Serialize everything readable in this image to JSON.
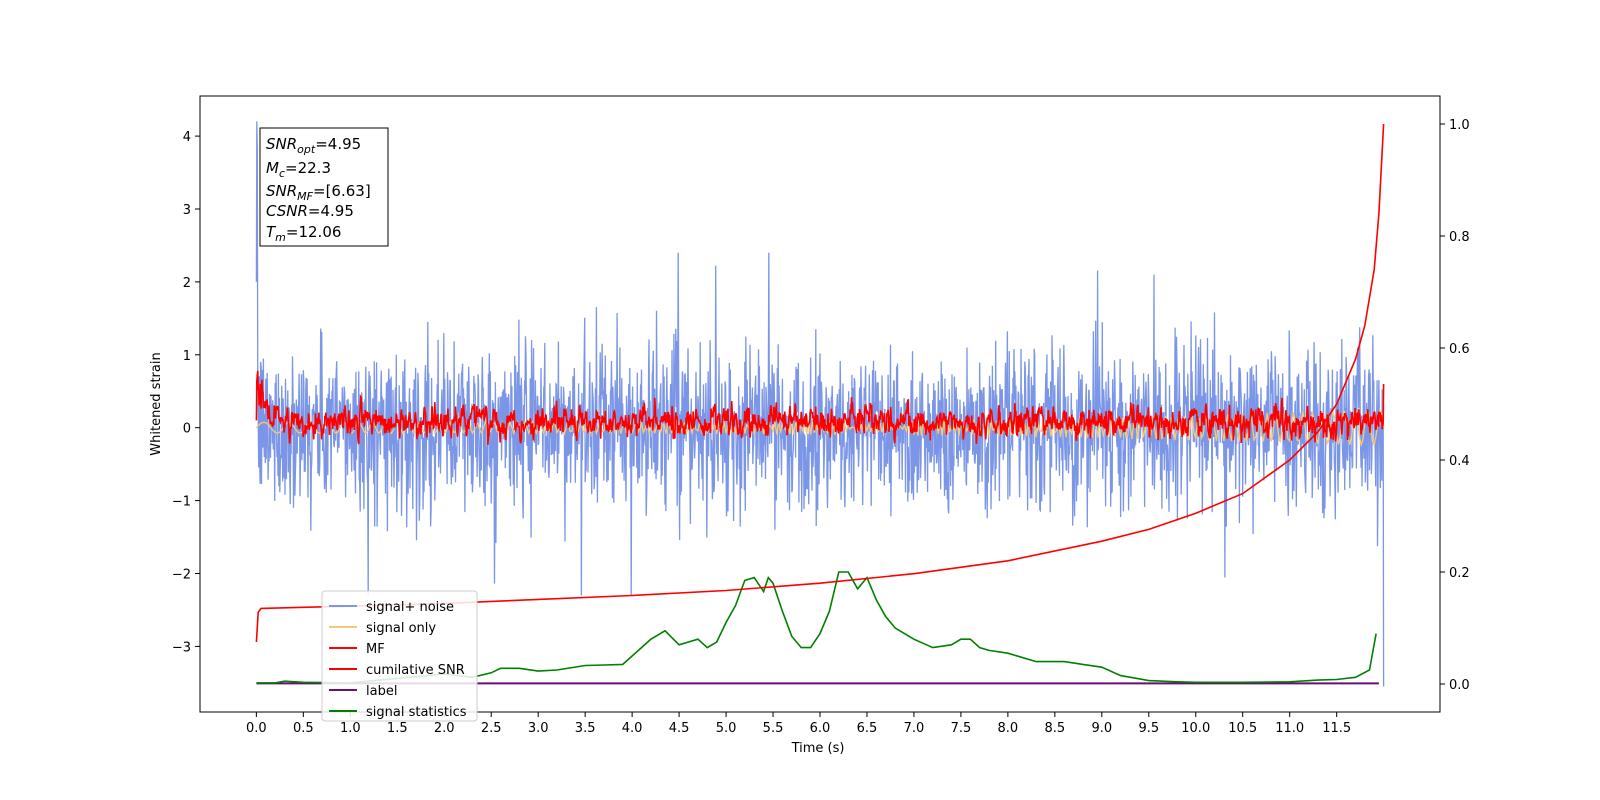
{
  "chart_data": {
    "type": "line",
    "xlabel": "Time (s)",
    "ylabel": "Whitened strain",
    "xlim": [
      -0.6,
      12.6
    ],
    "ylim_left": [
      -3.9,
      4.55
    ],
    "ylim_right": [
      -0.05,
      1.05
    ],
    "x_ticks": [
      "0.0",
      "0.5",
      "1.0",
      "1.5",
      "2.0",
      "2.5",
      "3.0",
      "3.5",
      "4.0",
      "4.5",
      "5.0",
      "5.5",
      "6.0",
      "6.5",
      "7.0",
      "7.5",
      "8.0",
      "8.5",
      "9.0",
      "9.5",
      "10.0",
      "10.5",
      "11.0",
      "11.5"
    ],
    "y_ticks_left": [
      "4",
      "3",
      "2",
      "1",
      "0",
      "−1",
      "−2",
      "−3"
    ],
    "y_ticks_right": [
      "1.0",
      "0.8",
      "0.6",
      "0.4",
      "0.2",
      "0.0"
    ],
    "info_box": {
      "snr_opt": {
        "sym": "SNR",
        "sub": "opt",
        "val": "=4.95"
      },
      "mc": {
        "sym": "M",
        "sub": "c",
        "val": "=22.3"
      },
      "snr_mf": {
        "sym": "SNR",
        "sub": "MF",
        "val": "=[6.63]"
      },
      "csnr": {
        "sym": "CSNR",
        "sub": "",
        "val": "=4.95"
      },
      "tm": {
        "sym": "T",
        "sub": "m",
        "val": "=12.06"
      }
    },
    "legend": [
      {
        "name": "signal+ noise",
        "color": "#7b96e6"
      },
      {
        "name": "signal only",
        "color": "#f5c97a"
      },
      {
        "name": "MF",
        "color": "#ff0000"
      },
      {
        "name": "cumilative SNR",
        "color": "#ff0000"
      },
      {
        "name": "label",
        "color": "#6a0d78"
      },
      {
        "name": "signal statistics",
        "color": "#008000"
      }
    ],
    "series": [
      {
        "name": "signal+ noise",
        "axis": "left",
        "x_range": [
          0,
          12.0
        ],
        "approx_std": 0.55,
        "approx_peak_max": 4.2,
        "approx_peak_min": -3.55
      },
      {
        "name": "signal only",
        "axis": "left",
        "x_range": [
          0,
          12.0
        ],
        "approx_amplitude": 0.25
      },
      {
        "name": "MF",
        "axis": "left",
        "x_range": [
          0,
          12.0
        ],
        "approx_center": 0.08,
        "approx_std": 0.12,
        "approx_start_peak": 1.0
      },
      {
        "name": "cumilative SNR",
        "axis": "right",
        "x": [
          0.0,
          0.02,
          0.05,
          0.5,
          1.0,
          2.0,
          3.0,
          4.0,
          5.0,
          6.0,
          7.0,
          8.0,
          9.0,
          9.5,
          10.0,
          10.5,
          11.0,
          11.3,
          11.5,
          11.7,
          11.8,
          11.9,
          11.95,
          12.0
        ],
        "values": [
          0.075,
          0.128,
          0.135,
          0.137,
          0.139,
          0.144,
          0.151,
          0.158,
          0.167,
          0.18,
          0.197,
          0.22,
          0.255,
          0.276,
          0.305,
          0.34,
          0.4,
          0.45,
          0.5,
          0.58,
          0.64,
          0.74,
          0.84,
          1.0
        ]
      },
      {
        "name": "label",
        "axis": "right",
        "x": [
          0.0,
          11.95
        ],
        "values": [
          0.001,
          0.001
        ]
      },
      {
        "name": "signal statistics",
        "axis": "right",
        "x": [
          0.0,
          0.2,
          0.3,
          0.5,
          1.0,
          1.5,
          2.0,
          2.3,
          2.5,
          2.6,
          2.8,
          3.0,
          3.2,
          3.5,
          3.7,
          3.9,
          4.0,
          4.1,
          4.2,
          4.35,
          4.5,
          4.6,
          4.7,
          4.8,
          4.9,
          5.0,
          5.1,
          5.2,
          5.3,
          5.4,
          5.45,
          5.5,
          5.6,
          5.7,
          5.8,
          5.9,
          6.0,
          6.1,
          6.2,
          6.3,
          6.4,
          6.5,
          6.6,
          6.7,
          6.8,
          6.9,
          7.0,
          7.2,
          7.4,
          7.5,
          7.6,
          7.7,
          7.8,
          8.0,
          8.3,
          8.6,
          8.8,
          9.0,
          9.2,
          9.5,
          9.8,
          10.0,
          10.5,
          11.0,
          11.3,
          11.5,
          11.7,
          11.85,
          11.92
        ],
        "values": [
          0.002,
          0.002,
          0.005,
          0.003,
          0.002,
          0.01,
          0.018,
          0.012,
          0.02,
          0.028,
          0.028,
          0.023,
          0.025,
          0.033,
          0.034,
          0.035,
          0.05,
          0.065,
          0.08,
          0.095,
          0.07,
          0.075,
          0.08,
          0.065,
          0.075,
          0.11,
          0.14,
          0.185,
          0.19,
          0.165,
          0.19,
          0.18,
          0.13,
          0.085,
          0.065,
          0.065,
          0.09,
          0.13,
          0.2,
          0.2,
          0.17,
          0.19,
          0.15,
          0.12,
          0.1,
          0.09,
          0.08,
          0.065,
          0.07,
          0.08,
          0.08,
          0.065,
          0.06,
          0.055,
          0.04,
          0.04,
          0.035,
          0.03,
          0.015,
          0.006,
          0.004,
          0.003,
          0.003,
          0.004,
          0.007,
          0.008,
          0.012,
          0.025,
          0.09
        ]
      }
    ]
  }
}
